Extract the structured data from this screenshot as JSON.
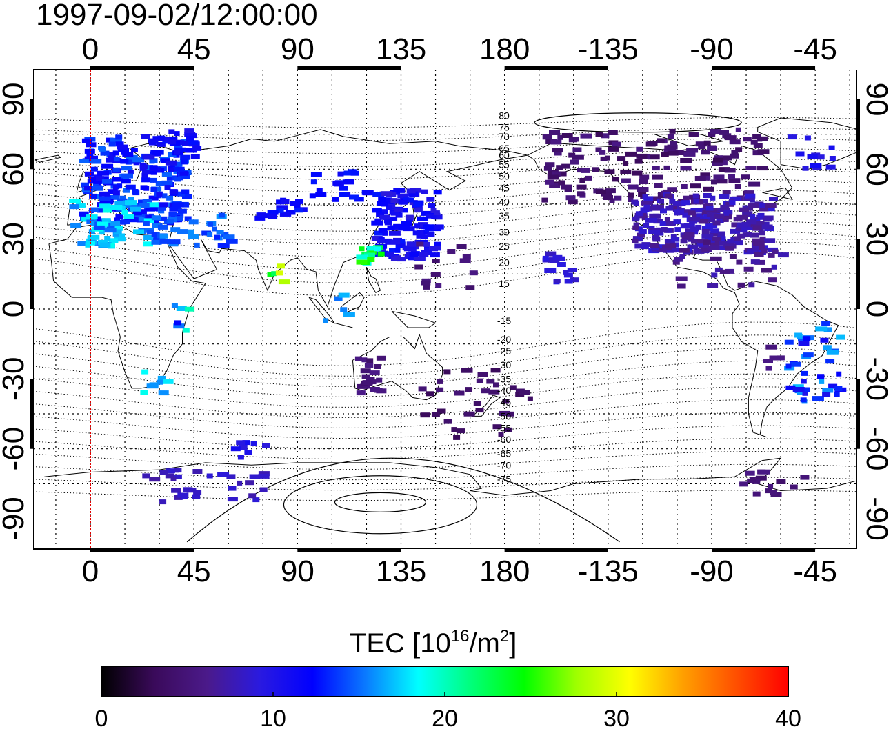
{
  "title": "1997-09-02/12:00:00",
  "map": {
    "top_lon_ticks": [
      "0",
      "45",
      "90",
      "135",
      "180",
      "-135",
      "-90",
      "-45"
    ],
    "bottom_lon_ticks": [
      "0",
      "45",
      "90",
      "135",
      "180",
      "-135",
      "-90",
      "-45"
    ],
    "left_lat_ticks": [
      "90",
      "60",
      "30",
      "0",
      "-30",
      "-60",
      "-90"
    ],
    "right_lat_ticks": [
      "90",
      "60",
      "30",
      "0",
      "-30",
      "-60",
      "-90"
    ],
    "lon_tick_values": [
      0,
      45,
      90,
      135,
      180,
      225,
      270,
      315
    ],
    "lat_tick_values": [
      90,
      60,
      30,
      0,
      -30,
      -60,
      -90
    ],
    "grid_lons": [
      -15,
      0,
      15,
      30,
      45,
      60,
      75,
      90,
      105,
      120,
      135,
      150,
      165,
      180,
      195,
      210,
      225,
      240,
      255,
      270,
      285,
      300,
      315,
      330,
      345
    ],
    "grid_lats": [
      -75,
      -60,
      -45,
      -30,
      -15,
      0,
      15,
      30,
      45,
      60,
      75
    ],
    "meridian_marker_lon": 0,
    "meridian_marker_color": "#e00000",
    "contour_labels": [
      {
        "text": "80",
        "lat": 83
      },
      {
        "text": "75",
        "lat": 78
      },
      {
        "text": "70",
        "lat": 74
      },
      {
        "text": "65",
        "lat": 69
      },
      {
        "text": "60",
        "lat": 66
      },
      {
        "text": "55",
        "lat": 62
      },
      {
        "text": "50",
        "lat": 57
      },
      {
        "text": "45",
        "lat": 52
      },
      {
        "text": "40",
        "lat": 46
      },
      {
        "text": "35",
        "lat": 40
      },
      {
        "text": "30",
        "lat": 33
      },
      {
        "text": "25",
        "lat": 27
      },
      {
        "text": "20",
        "lat": 20
      },
      {
        "text": "15",
        "lat": 11
      },
      {
        "text": "-15",
        "lat": -5
      },
      {
        "text": "-20",
        "lat": -13
      },
      {
        "text": "-25",
        "lat": -18
      },
      {
        "text": "-30",
        "lat": -24
      },
      {
        "text": "-35",
        "lat": -30
      },
      {
        "text": "-40",
        "lat": -35
      },
      {
        "text": "-45",
        "lat": -40
      },
      {
        "text": "-50",
        "lat": -46
      },
      {
        "text": "-55",
        "lat": -51
      },
      {
        "text": "-60",
        "lat": -56
      },
      {
        "text": "-65",
        "lat": -62
      },
      {
        "text": "-70",
        "lat": -67
      },
      {
        "text": "-75",
        "lat": -73
      }
    ]
  },
  "colorbar": {
    "label_main": "TEC  [10",
    "label_sup1": "16",
    "label_mid": "/m",
    "label_sup2": "2",
    "label_end": "]",
    "min": 0,
    "max": 40,
    "ticks": [
      "0",
      "10",
      "20",
      "30",
      "40"
    ],
    "tick_values": [
      0,
      10,
      20,
      30,
      40
    ],
    "colors": [
      "#000000",
      "#3a0a5a",
      "#4b1a8a",
      "#2a1ae0",
      "#0000ff",
      "#0a7aff",
      "#00ffff",
      "#00ff7a",
      "#00ff00",
      "#a0ff00",
      "#ffff00",
      "#ffa000",
      "#ff5000",
      "#ff0000"
    ]
  },
  "tec_regions": [
    {
      "lon": [
        -5,
        40
      ],
      "lat": [
        38,
        75
      ],
      "tec": [
        11,
        15
      ],
      "n": 220
    },
    {
      "lon": [
        -10,
        25
      ],
      "lat": [
        28,
        48
      ],
      "tec": [
        14,
        19
      ],
      "n": 70
    },
    {
      "lon": [
        20,
        45
      ],
      "lat": [
        60,
        78
      ],
      "tec": [
        10,
        13
      ],
      "n": 30
    },
    {
      "lon": [
        25,
        60
      ],
      "lat": [
        28,
        42
      ],
      "tec": [
        13,
        16
      ],
      "n": 40
    },
    {
      "lon": [
        95,
        120
      ],
      "lat": [
        48,
        60
      ],
      "tec": [
        11,
        13
      ],
      "n": 22
    },
    {
      "lon": [
        70,
        90
      ],
      "lat": [
        40,
        48
      ],
      "tec": [
        11,
        14
      ],
      "n": 18
    },
    {
      "lon": [
        122,
        150
      ],
      "lat": [
        22,
        52
      ],
      "tec": [
        9,
        13
      ],
      "n": 140
    },
    {
      "lon": [
        115,
        127
      ],
      "lat": [
        20,
        28
      ],
      "tec": [
        14,
        26
      ],
      "n": 14
    },
    {
      "lon": [
        140,
        165
      ],
      "lat": [
        10,
        30
      ],
      "tec": [
        4,
        6
      ],
      "n": 14
    },
    {
      "lon": [
        75,
        82
      ],
      "lat": [
        12,
        20
      ],
      "tec": [
        22,
        30
      ],
      "n": 5
    },
    {
      "lon": [
        100,
        110
      ],
      "lat": [
        -5,
        8
      ],
      "tec": [
        14,
        17
      ],
      "n": 5
    },
    {
      "lon": [
        35,
        45
      ],
      "lat": [
        -15,
        5
      ],
      "tec": [
        12,
        22
      ],
      "n": 6
    },
    {
      "lon": [
        20,
        35
      ],
      "lat": [
        -35,
        -25
      ],
      "tec": [
        15,
        19
      ],
      "n": 8
    },
    {
      "lon": [
        115,
        125
      ],
      "lat": [
        -38,
        -20
      ],
      "tec": [
        4,
        6
      ],
      "n": 22
    },
    {
      "lon": [
        140,
        190
      ],
      "lat": [
        -55,
        -25
      ],
      "tec": [
        3,
        5
      ],
      "n": 36
    },
    {
      "lon": [
        195,
        210
      ],
      "lat": [
        12,
        25
      ],
      "tec": [
        8,
        10
      ],
      "n": 16
    },
    {
      "lon": [
        195,
        290
      ],
      "lat": [
        47,
        78
      ],
      "tec": [
        3,
        6
      ],
      "n": 170
    },
    {
      "lon": [
        235,
        295
      ],
      "lat": [
        25,
        50
      ],
      "tec": [
        6,
        9
      ],
      "n": 260
    },
    {
      "lon": [
        250,
        300
      ],
      "lat": [
        10,
        30
      ],
      "tec": [
        5,
        8
      ],
      "n": 30
    },
    {
      "lon": [
        300,
        325
      ],
      "lat": [
        60,
        75
      ],
      "tec": [
        9,
        11
      ],
      "n": 12
    },
    {
      "lon": [
        300,
        325
      ],
      "lat": [
        -40,
        -5
      ],
      "tec": [
        10,
        17
      ],
      "n": 44
    },
    {
      "lon": [
        290,
        300
      ],
      "lat": [
        -25,
        -15
      ],
      "tec": [
        5,
        7
      ],
      "n": 5
    },
    {
      "lon": [
        280,
        310
      ],
      "lat": [
        -80,
        -68
      ],
      "tec": [
        4,
        6
      ],
      "n": 16
    },
    {
      "lon": [
        20,
        75
      ],
      "lat": [
        -82,
        -68
      ],
      "tec": [
        7,
        9
      ],
      "n": 32
    },
    {
      "lon": [
        60,
        75
      ],
      "lat": [
        -63,
        -56
      ],
      "tec": [
        9,
        11
      ],
      "n": 8
    }
  ]
}
